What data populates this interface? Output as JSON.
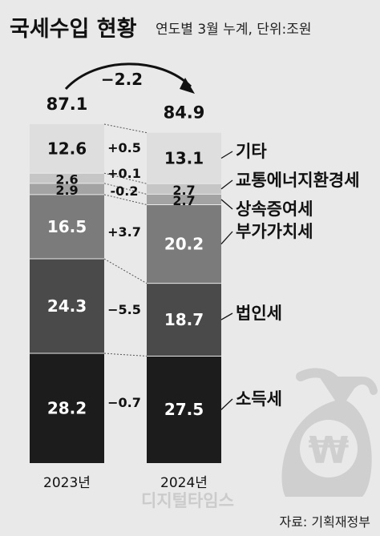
{
  "header": {
    "title": "국세수입 현황",
    "subtitle": "연도별 3월 누계, 단위:조원"
  },
  "source": "자료: 기획재정부",
  "watermark": "디지털타임스",
  "colors": {
    "background": "#e9e9e9",
    "seg_1": "#1c1c1c",
    "seg_2": "#4a4a4a",
    "seg_3": "#7b7b7b",
    "seg_4": "#a3a3a3",
    "seg_5": "#c6c6c6",
    "seg_6": "#dedede",
    "bag": "#cfcfcf"
  },
  "chart_data": {
    "type": "bar",
    "stacked": true,
    "unit": "조원",
    "categories": [
      "2023년",
      "2024년"
    ],
    "totals": [
      "87.1",
      "84.9"
    ],
    "total_change": "−2.2",
    "series": [
      {
        "name": "소득세",
        "values": [
          28.2,
          27.5
        ],
        "labels": [
          "28.2",
          "27.5"
        ],
        "change": "−0.7"
      },
      {
        "name": "법인세",
        "values": [
          24.3,
          18.7
        ],
        "labels": [
          "24.3",
          "18.7"
        ],
        "change": "−5.5"
      },
      {
        "name": "부가가치세",
        "values": [
          16.5,
          20.2
        ],
        "labels": [
          "16.5",
          "20.2"
        ],
        "change": "+3.7"
      },
      {
        "name": "상속증여세",
        "values": [
          2.9,
          2.7
        ],
        "labels": [
          "2.9",
          "2.7"
        ],
        "change": "-0.2"
      },
      {
        "name": "교통에너지환경세",
        "values": [
          2.6,
          2.7
        ],
        "labels": [
          "2.6",
          "2.7"
        ],
        "change": "+0.1"
      },
      {
        "name": "기타",
        "values": [
          12.6,
          13.1
        ],
        "labels": [
          "12.6",
          "13.1"
        ],
        "change": "+0.5"
      }
    ]
  },
  "icons": {
    "bag": "money-bag-icon",
    "won": "won-sign-icon",
    "arrow": "curved-arrow-icon"
  }
}
